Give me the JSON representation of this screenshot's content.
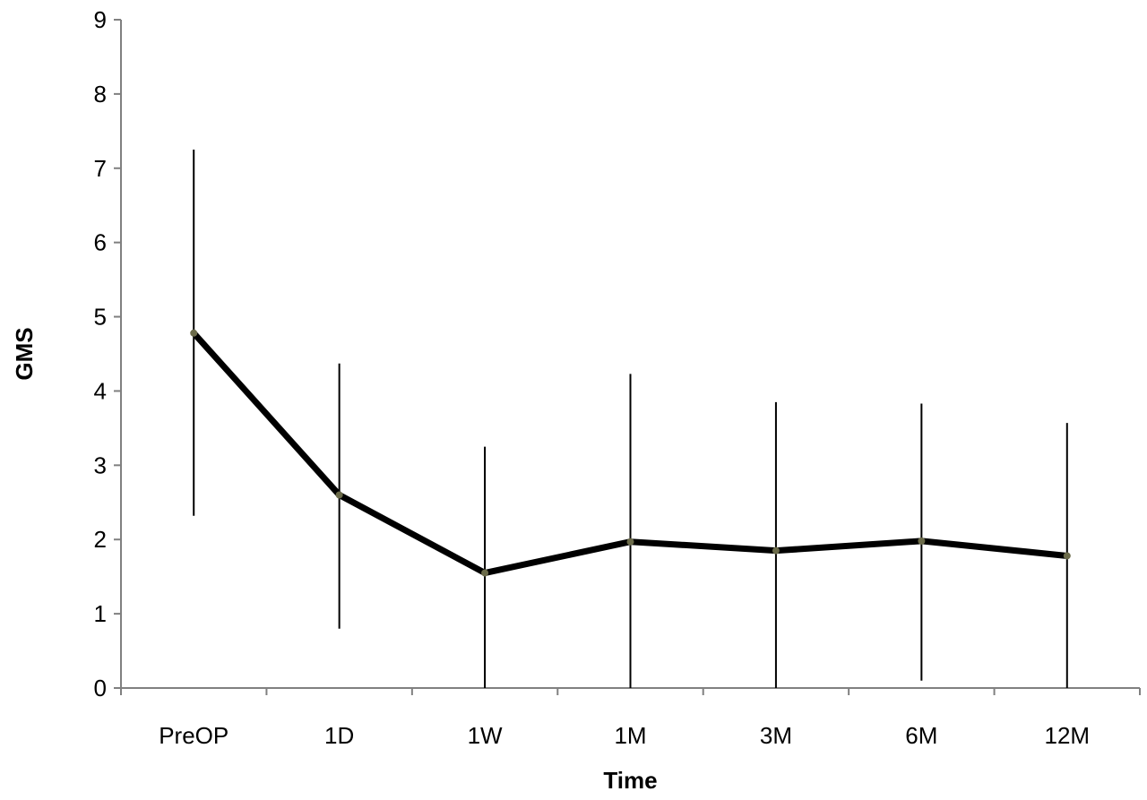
{
  "chart_data": {
    "type": "line",
    "title": "",
    "xlabel": "Time",
    "ylabel": "GMS",
    "categories": [
      "PreOP",
      "1D",
      "1W",
      "1M",
      "3M",
      "6M",
      "12M"
    ],
    "yticks": [
      "0",
      "1",
      "2",
      "3",
      "4",
      "5",
      "6",
      "7",
      "8",
      "9"
    ],
    "ylim": [
      0,
      9
    ],
    "grid": false,
    "legend": "none",
    "series": [
      {
        "values": [
          4.78,
          2.6,
          1.55,
          1.97,
          1.85,
          1.98,
          1.78
        ],
        "error_low": [
          2.32,
          0.8,
          0,
          0,
          0,
          0.1,
          0
        ],
        "error_high": [
          7.25,
          4.37,
          3.25,
          4.23,
          3.85,
          3.83,
          3.57
        ],
        "color": "#000000",
        "marker_color": "#6b6b4a"
      }
    ]
  }
}
